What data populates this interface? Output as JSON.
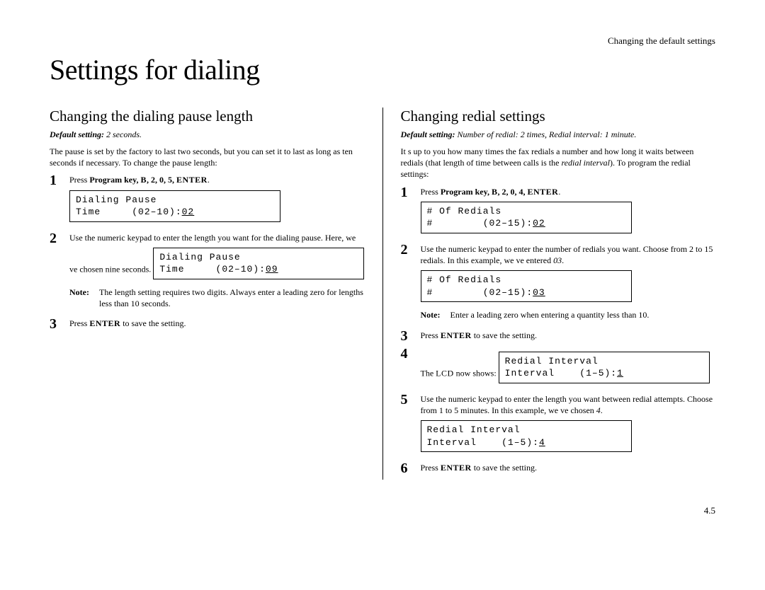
{
  "header": {
    "right": "Changing the default settings"
  },
  "title": "Settings for dialing",
  "pageNumber": "4.5",
  "left": {
    "heading": "Changing the dialing pause length",
    "defaultLabel": "Default setting:",
    "defaultValue": " 2 seconds.",
    "intro": "The pause is set by the factory to last two seconds, but you can set it to last as long as ten seconds if necessary. To change the pause length:",
    "steps": [
      {
        "num": "1",
        "pre": "Press ",
        "boldA": "Program key, ",
        "scA": "B",
        "boldB": ", 2, 0, 5, ",
        "scB": "ENTER",
        "post": ".",
        "lcd1": "Dialing Pause",
        "lcd2a": "Time     (02–10):",
        "lcd2u": "02"
      },
      {
        "num": "2",
        "text": "Use the numeric keypad to enter the length you want for the dialing pause. Here, we ve chosen nine seconds.",
        "lcd1": "Dialing Pause",
        "lcd2a": "Time     (02–10):",
        "lcd2u": "09",
        "noteLabel": "Note:",
        "note": "The length setting requires two digits. Always enter a leading zero for lengths less than 10 seconds."
      },
      {
        "num": "3",
        "pre": "Press ",
        "sc": "ENTER",
        "post": " to save the setting."
      }
    ]
  },
  "right": {
    "heading": "Changing redial settings",
    "defaultLabel": "Default setting:",
    "defaultValue": " Number of redial: 2 times, Redial interval: 1 minute.",
    "introA": "It s up to you how many times the fax redials a number and how long it waits between redials (that length of time between calls is the ",
    "introItalic": "redial interval",
    "introB": "). To program the redial settings:",
    "steps": [
      {
        "num": "1",
        "pre": "Press ",
        "boldA": "Program key, ",
        "scA": "B",
        "boldB": ", 2, 0, 4, ",
        "scB": "ENTER",
        "post": ".",
        "lcd1": "# Of Redials",
        "lcd2a": "#        (02–15):",
        "lcd2u": "02"
      },
      {
        "num": "2",
        "textA": "Use the numeric keypad to enter the number of redials you want. Choose from 2 to 15 redials. In this example, we ve entered ",
        "textItalic": "03",
        "textB": ".",
        "lcd1": "# Of Redials",
        "lcd2a": "#        (02–15):",
        "lcd2u": "03",
        "noteLabel": "Note:",
        "note": "Enter a leading zero when entering a quantity less than 10."
      },
      {
        "num": "3",
        "pre": "Press ",
        "sc": "ENTER",
        "post": " to save the setting."
      },
      {
        "num": "4",
        "pre": "The ",
        "sc": "LCD",
        "post": " now shows:",
        "lcd1": "Redial Interval",
        "lcd2a": "Interval    (1–5):",
        "lcd2u": "1"
      },
      {
        "num": "5",
        "textA": "Use the numeric keypad to enter the length you want between redial attempts. Choose from 1 to 5 minutes. In this example, we ve chosen ",
        "textItalic": "4",
        "textB": ".",
        "lcd1": "Redial Interval",
        "lcd2a": "Interval    (1–5):",
        "lcd2u": "4"
      },
      {
        "num": "6",
        "pre": "Press ",
        "sc": "ENTER",
        "post": " to save the setting."
      }
    ]
  }
}
